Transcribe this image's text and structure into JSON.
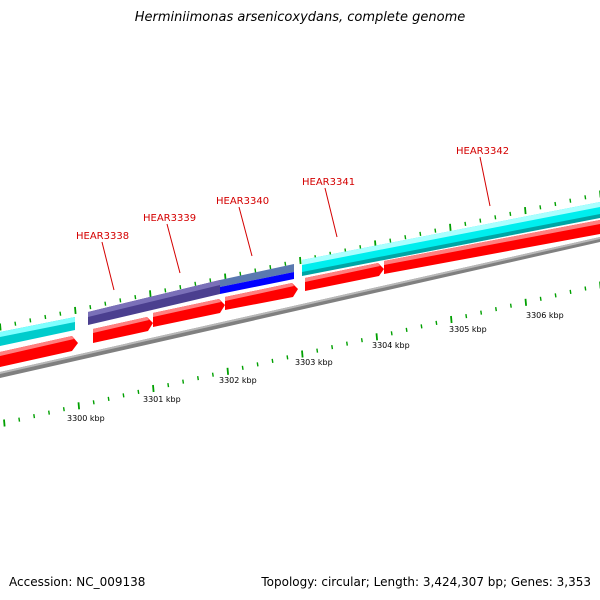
{
  "title": "Herminiimonas arsenicoxydans, complete genome",
  "footer": {
    "accession": "Accession: NC_009138",
    "summary": "Topology: circular; Length: 3,424,307 bp; Genes: 3,353"
  },
  "colors": {
    "cds": "#ff0000",
    "cyan_feature": "#00ffff",
    "dark_purple_feature": "#4b3f8f",
    "blue_feature": "#0000ff",
    "backbone": "#808080",
    "tick": "#00a000",
    "gene_label": "#d40000"
  },
  "scale_labels": [
    "3300 kbp",
    "3301 kbp",
    "3302 kbp",
    "3303 kbp",
    "3304 kbp",
    "3305 kbp",
    "3306 kbp"
  ],
  "gene_labels": [
    "HEAR3338",
    "HEAR3339",
    "HEAR3340",
    "HEAR3341",
    "HEAR3342"
  ]
}
